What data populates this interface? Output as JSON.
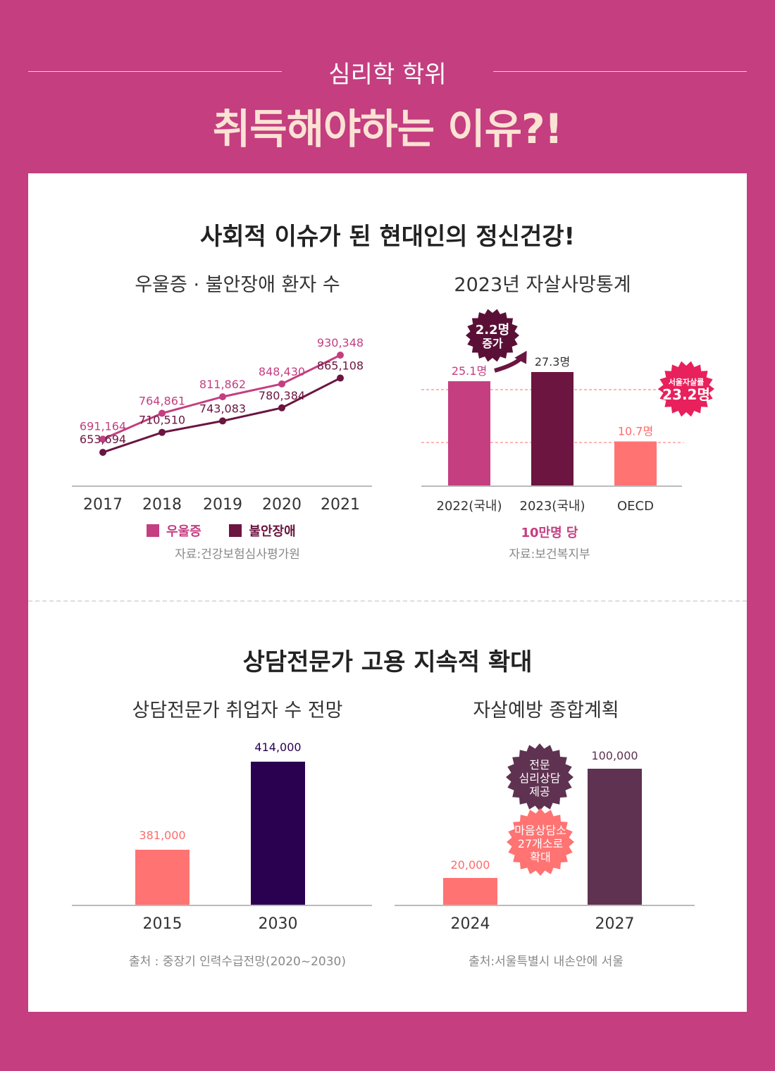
{
  "header": {
    "subtitle": "심리학 학위",
    "title": "취득해야하는 이유?!"
  },
  "section1": {
    "title": "사회적 이슈가 된 현대인의 정신건강!"
  },
  "section2": {
    "title": "상담전문가 고용 지속적 확대"
  },
  "chart_data": [
    {
      "type": "line",
      "title": "우울증 · 불안장애 환자 수",
      "x": [
        "2017",
        "2018",
        "2019",
        "2020",
        "2021"
      ],
      "series": [
        {
          "name": "우울증",
          "values": [
            691164,
            764861,
            811862,
            848430,
            930348
          ],
          "labels": [
            "691,164",
            "764,861",
            "811,862",
            "848,430",
            "930,348"
          ],
          "color": "#c43e80"
        },
        {
          "name": "불안장애",
          "values": [
            653694,
            710510,
            743083,
            780384,
            865108
          ],
          "labels": [
            "653,694",
            "710,510",
            "743,083",
            "780,384",
            "865,108"
          ],
          "color": "#6b1540"
        }
      ],
      "source": "자료:건강보험심사평가원"
    },
    {
      "type": "bar",
      "title": "2023년 자살사망통계",
      "categories": [
        "2022(국내)",
        "2023(국내)",
        "OECD"
      ],
      "values": [
        25.1,
        27.3,
        10.7
      ],
      "labels": [
        "25.1명",
        "27.3명",
        "10.7명"
      ],
      "colors": [
        "#c43e80",
        "#6b1540",
        "#ff7373"
      ],
      "unit": "10만명 당",
      "reference_line": 23.2,
      "annotations": {
        "increase_line1": "2.2명",
        "increase_line2": "증가",
        "seoul_line1": "서울자살률",
        "seoul_line2": "23.2명"
      },
      "source": "자료:보건복지부"
    },
    {
      "type": "bar",
      "title": "상담전문가 취업자 수 전망",
      "categories": [
        "2015",
        "2030"
      ],
      "values": [
        381000,
        414000
      ],
      "labels": [
        "381,000",
        "414,000"
      ],
      "colors": [
        "#ff7373",
        "#2a0050"
      ],
      "source": "출처 : 중장기 인력수급전망(2020~2030)"
    },
    {
      "type": "bar",
      "title": "자살예방 종합계획",
      "categories": [
        "2024",
        "2027"
      ],
      "values": [
        20000,
        100000
      ],
      "labels": [
        "20,000",
        "100,000"
      ],
      "colors": [
        "#ff7373",
        "#5e3250"
      ],
      "annotations": {
        "badge1": [
          "전문",
          "심리상담",
          "제공"
        ],
        "badge2": [
          "마음상담소",
          "27개소로",
          "확대"
        ]
      },
      "source": "출처:서울특별시 내손안에 서울"
    }
  ]
}
